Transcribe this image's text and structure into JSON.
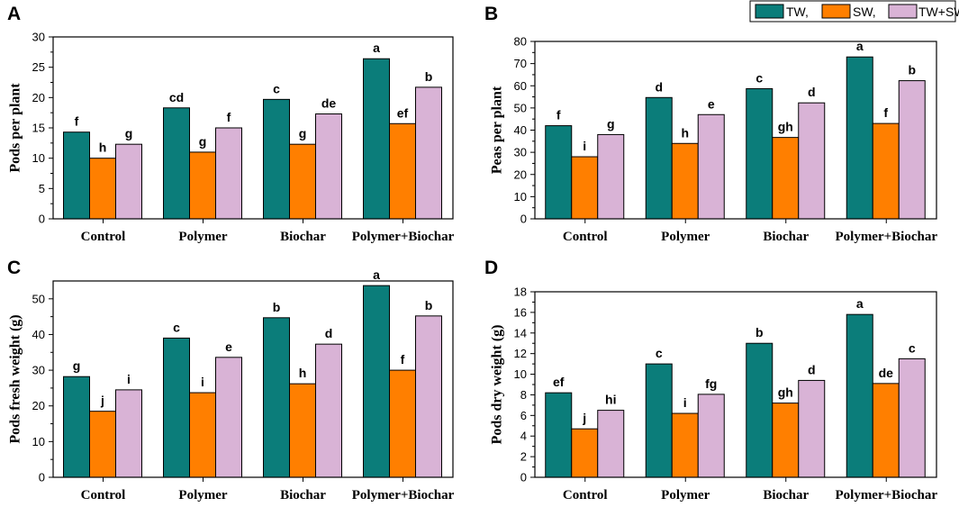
{
  "legend": [
    {
      "name": "TW,",
      "color": "#0b7d7a"
    },
    {
      "name": "SW,",
      "color": "#ff7f00"
    },
    {
      "name": "TW+SW",
      "color": "#d9b3d6"
    }
  ],
  "chart_data": [
    {
      "type": "bar",
      "panel": "A",
      "ylabel": "Pods per plant",
      "categories": [
        "Control",
        "Polymer",
        "Biochar",
        "Polymer+Biochar"
      ],
      "ylim": [
        0,
        30
      ],
      "yticks": [
        0,
        5,
        10,
        15,
        20,
        25,
        30
      ],
      "series": [
        {
          "name": "TW,",
          "values": [
            14.3,
            18.3,
            19.7,
            26.4
          ],
          "labels": [
            "f",
            "cd",
            "c",
            "a"
          ]
        },
        {
          "name": "SW,",
          "values": [
            10.0,
            11.0,
            12.3,
            15.7
          ],
          "labels": [
            "h",
            "g",
            "g",
            "ef"
          ]
        },
        {
          "name": "TW+SW",
          "values": [
            12.3,
            15.0,
            17.3,
            21.7
          ],
          "labels": [
            "g",
            "f",
            "de",
            "b"
          ]
        }
      ]
    },
    {
      "type": "bar",
      "panel": "B",
      "ylabel": "Peas per plant",
      "categories": [
        "Control",
        "Polymer",
        "Biochar",
        "Polymer+Biochar"
      ],
      "ylim": [
        0,
        80
      ],
      "yticks": [
        0,
        10,
        20,
        30,
        40,
        50,
        60,
        70,
        80
      ],
      "series": [
        {
          "name": "TW,",
          "values": [
            42,
            54.7,
            58.7,
            73
          ],
          "labels": [
            "f",
            "d",
            "c",
            "a"
          ]
        },
        {
          "name": "SW,",
          "values": [
            28,
            34,
            36.7,
            43
          ],
          "labels": [
            "i",
            "h",
            "gh",
            "f"
          ]
        },
        {
          "name": "TW+SW",
          "values": [
            38,
            47,
            52.3,
            62.3
          ],
          "labels": [
            "g",
            "e",
            "d",
            "b"
          ]
        }
      ]
    },
    {
      "type": "bar",
      "panel": "C",
      "ylabel": "Pods fresh weight (g)",
      "categories": [
        "Control",
        "Polymer",
        "Biochar",
        "Polymer+Biochar"
      ],
      "ylim": [
        0,
        55
      ],
      "yticks": [
        0,
        10,
        20,
        30,
        40,
        50
      ],
      "series": [
        {
          "name": "TW,",
          "values": [
            28.2,
            39,
            44.7,
            53.7
          ],
          "labels": [
            "g",
            "c",
            "b",
            "a"
          ]
        },
        {
          "name": "SW,",
          "values": [
            18.5,
            23.7,
            26.2,
            30
          ],
          "labels": [
            "j",
            "i",
            "h",
            "f"
          ]
        },
        {
          "name": "TW+SW",
          "values": [
            24.5,
            33.6,
            37.3,
            45.2
          ],
          "labels": [
            "i",
            "e",
            "d",
            "b"
          ]
        }
      ]
    },
    {
      "type": "bar",
      "panel": "D",
      "ylabel": "Pods dry weight (g)",
      "categories": [
        "Control",
        "Polymer",
        "Biochar",
        "Polymer+Biochar"
      ],
      "ylim": [
        0,
        18
      ],
      "yticks": [
        0,
        2,
        4,
        6,
        8,
        10,
        12,
        14,
        16,
        18
      ],
      "series": [
        {
          "name": "TW,",
          "values": [
            8.2,
            11,
            13,
            15.8
          ],
          "labels": [
            "ef",
            "c",
            "b",
            "a"
          ]
        },
        {
          "name": "SW,",
          "values": [
            4.7,
            6.2,
            7.2,
            9.1
          ],
          "labels": [
            "j",
            "i",
            "gh",
            "de"
          ]
        },
        {
          "name": "TW+SW",
          "values": [
            6.5,
            8.05,
            9.4,
            11.5
          ],
          "labels": [
            "hi",
            "fg",
            "d",
            "c"
          ]
        }
      ]
    }
  ]
}
